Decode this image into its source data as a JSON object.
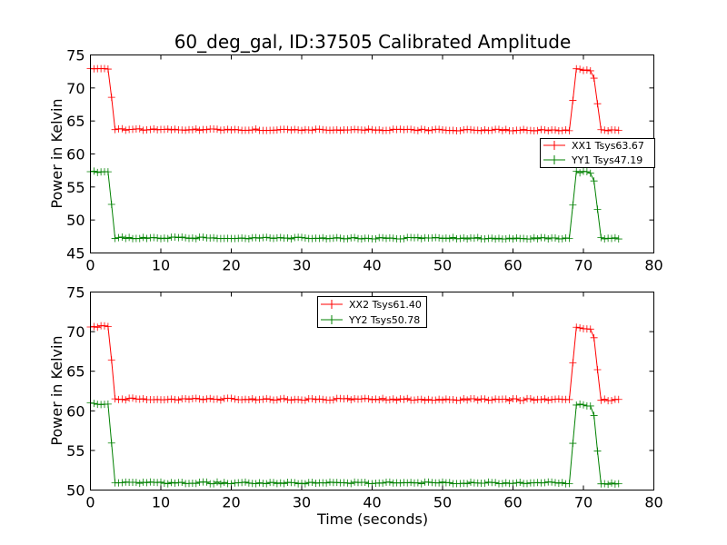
{
  "title": "60_deg_gal, ID:37505 Calibrated Amplitude",
  "chart_data": [
    {
      "type": "line",
      "title": "60_deg_gal, ID:37505 Calibrated Amplitude",
      "xlabel": "",
      "ylabel": "Power in Kelvin",
      "xlim": [
        0,
        80
      ],
      "ylim": [
        45,
        75
      ],
      "xticks": [
        "0",
        "10",
        "20",
        "30",
        "40",
        "50",
        "60",
        "70",
        "80"
      ],
      "yticks": [
        "45",
        "50",
        "55",
        "60",
        "65",
        "70",
        "75"
      ],
      "grid": false,
      "legend_position": "center-right",
      "series": [
        {
          "name": "XX1 Tsys63.67",
          "color": "#ff0000",
          "marker": "+",
          "sample_interval": 0.5,
          "x_range": [
            0,
            75
          ],
          "profile": [
            [
              0,
              73.0
            ],
            [
              2.5,
              72.8
            ],
            [
              3.0,
              68.5
            ],
            [
              3.5,
              63.7
            ],
            [
              68.0,
              63.6
            ],
            [
              68.5,
              68.2
            ],
            [
              69.0,
              72.8
            ],
            [
              71.0,
              72.6
            ],
            [
              71.5,
              71.5
            ],
            [
              72.0,
              67.5
            ],
            [
              72.5,
              63.6
            ],
            [
              75.0,
              63.6
            ]
          ]
        },
        {
          "name": "YY1 Tsys47.19",
          "color": "#008000",
          "marker": "+",
          "sample_interval": 0.5,
          "x_range": [
            0,
            75
          ],
          "profile": [
            [
              0,
              57.3
            ],
            [
              2.5,
              57.2
            ],
            [
              3.0,
              52.4
            ],
            [
              3.5,
              47.3
            ],
            [
              68.0,
              47.2
            ],
            [
              68.5,
              52.2
            ],
            [
              69.0,
              57.3
            ],
            [
              71.0,
              57.2
            ],
            [
              71.5,
              56.0
            ],
            [
              72.0,
              51.5
            ],
            [
              72.5,
              47.2
            ],
            [
              75.0,
              47.2
            ]
          ]
        }
      ]
    },
    {
      "type": "line",
      "title": "",
      "xlabel": "Time (seconds)",
      "ylabel": "Power in Kelvin",
      "xlim": [
        0,
        80
      ],
      "ylim": [
        50,
        75
      ],
      "xticks": [
        "0",
        "10",
        "20",
        "30",
        "40",
        "50",
        "60",
        "70",
        "80"
      ],
      "yticks": [
        "50",
        "55",
        "60",
        "65",
        "70",
        "75"
      ],
      "grid": false,
      "legend_position": "upper-center",
      "series": [
        {
          "name": "XX2 Tsys61.40",
          "color": "#ff0000",
          "marker": "+",
          "sample_interval": 0.5,
          "x_range": [
            0,
            75
          ],
          "profile": [
            [
              0,
              70.7
            ],
            [
              2.5,
              70.6
            ],
            [
              3.0,
              66.3
            ],
            [
              3.5,
              61.5
            ],
            [
              68.0,
              61.4
            ],
            [
              68.5,
              66.0
            ],
            [
              69.0,
              70.5
            ],
            [
              71.0,
              70.4
            ],
            [
              71.5,
              69.3
            ],
            [
              72.0,
              65.3
            ],
            [
              72.5,
              61.4
            ],
            [
              75.0,
              61.4
            ]
          ]
        },
        {
          "name": "YY2 Tsys50.78",
          "color": "#008000",
          "marker": "+",
          "sample_interval": 0.5,
          "x_range": [
            0,
            75
          ],
          "profile": [
            [
              0,
              60.9
            ],
            [
              2.5,
              60.8
            ],
            [
              3.0,
              56.0
            ],
            [
              3.5,
              50.9
            ],
            [
              68.0,
              50.9
            ],
            [
              68.5,
              55.8
            ],
            [
              69.0,
              60.8
            ],
            [
              71.0,
              60.7
            ],
            [
              71.5,
              59.5
            ],
            [
              72.0,
              55.0
            ],
            [
              72.5,
              50.8
            ],
            [
              75.0,
              50.8
            ]
          ]
        }
      ]
    }
  ]
}
